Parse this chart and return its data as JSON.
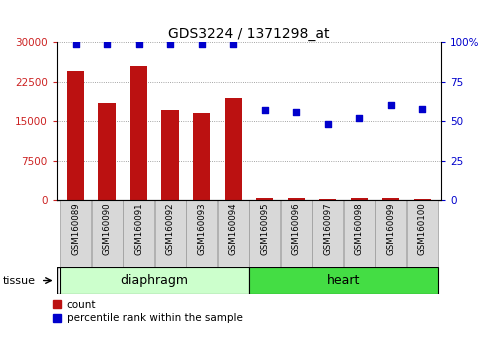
{
  "title": "GDS3224 / 1371298_at",
  "samples": [
    "GSM160089",
    "GSM160090",
    "GSM160091",
    "GSM160092",
    "GSM160093",
    "GSM160094",
    "GSM160095",
    "GSM160096",
    "GSM160097",
    "GSM160098",
    "GSM160099",
    "GSM160100"
  ],
  "counts": [
    24500,
    18500,
    25500,
    17200,
    16500,
    19500,
    300,
    350,
    200,
    450,
    350,
    280
  ],
  "percentiles": [
    99,
    99,
    99,
    99,
    99,
    99,
    57,
    56,
    48,
    52,
    60,
    58
  ],
  "tissue_groups": [
    {
      "label": "diaphragm",
      "start": 0,
      "end": 6,
      "color": "#ccffcc"
    },
    {
      "label": "heart",
      "start": 6,
      "end": 12,
      "color": "#44dd44"
    }
  ],
  "bar_color": "#bb1111",
  "dot_color": "#0000cc",
  "ylim_left": [
    0,
    30000
  ],
  "ylim_right": [
    0,
    100
  ],
  "yticks_left": [
    0,
    7500,
    15000,
    22500,
    30000
  ],
  "yticks_right": [
    0,
    25,
    50,
    75,
    100
  ],
  "grid_color": "#888888",
  "bg_color": "#ffffff",
  "tick_label_color_left": "#cc2222",
  "tick_label_color_right": "#0000cc",
  "legend_count_label": "count",
  "legend_pct_label": "percentile rank within the sample",
  "tissue_label": "tissue",
  "bar_width": 0.55,
  "xtick_bg_color": "#d8d8d8",
  "xtick_border_color": "#999999"
}
